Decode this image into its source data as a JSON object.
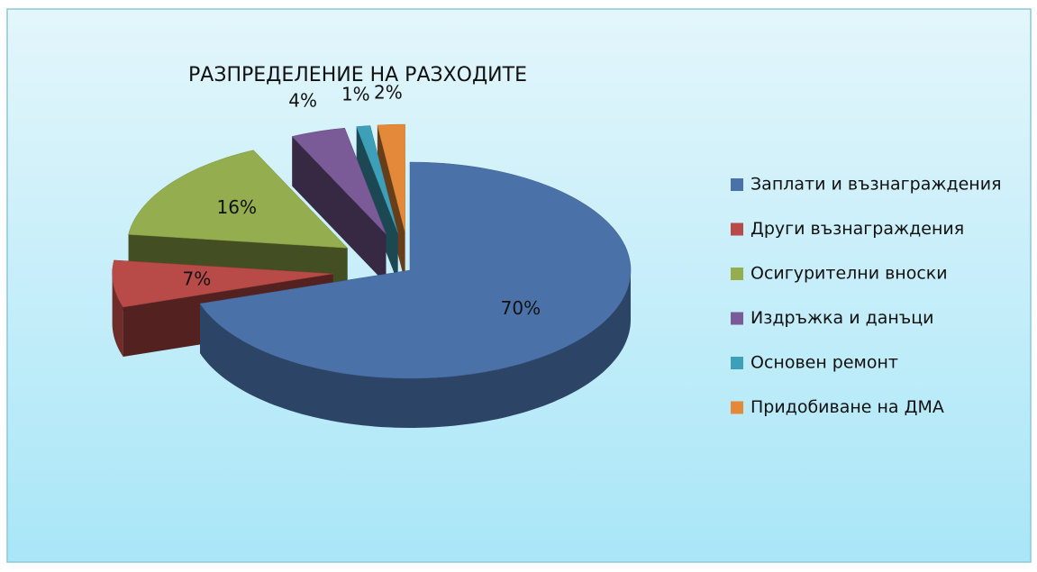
{
  "chart_data": {
    "type": "pie",
    "title": "РАЗПРЕДЕЛЕНИЕ НА РАЗХОДИТЕ",
    "categories": [
      "Заплати и възнаграждения",
      "Други възнаграждения",
      "Осигурителни вноски",
      "Издръжка и данъци",
      "Основен ремонт",
      "Придобиване на ДМА"
    ],
    "values": [
      70,
      7,
      16,
      4,
      1,
      2
    ],
    "value_labels": [
      "70%",
      "7%",
      "16%",
      "4%",
      "1%",
      "2%"
    ],
    "colors": [
      "#4a72a8",
      "#b84a47",
      "#94ad4e",
      "#7a5a97",
      "#3e9fb8",
      "#e4883a"
    ],
    "legend": "right"
  }
}
